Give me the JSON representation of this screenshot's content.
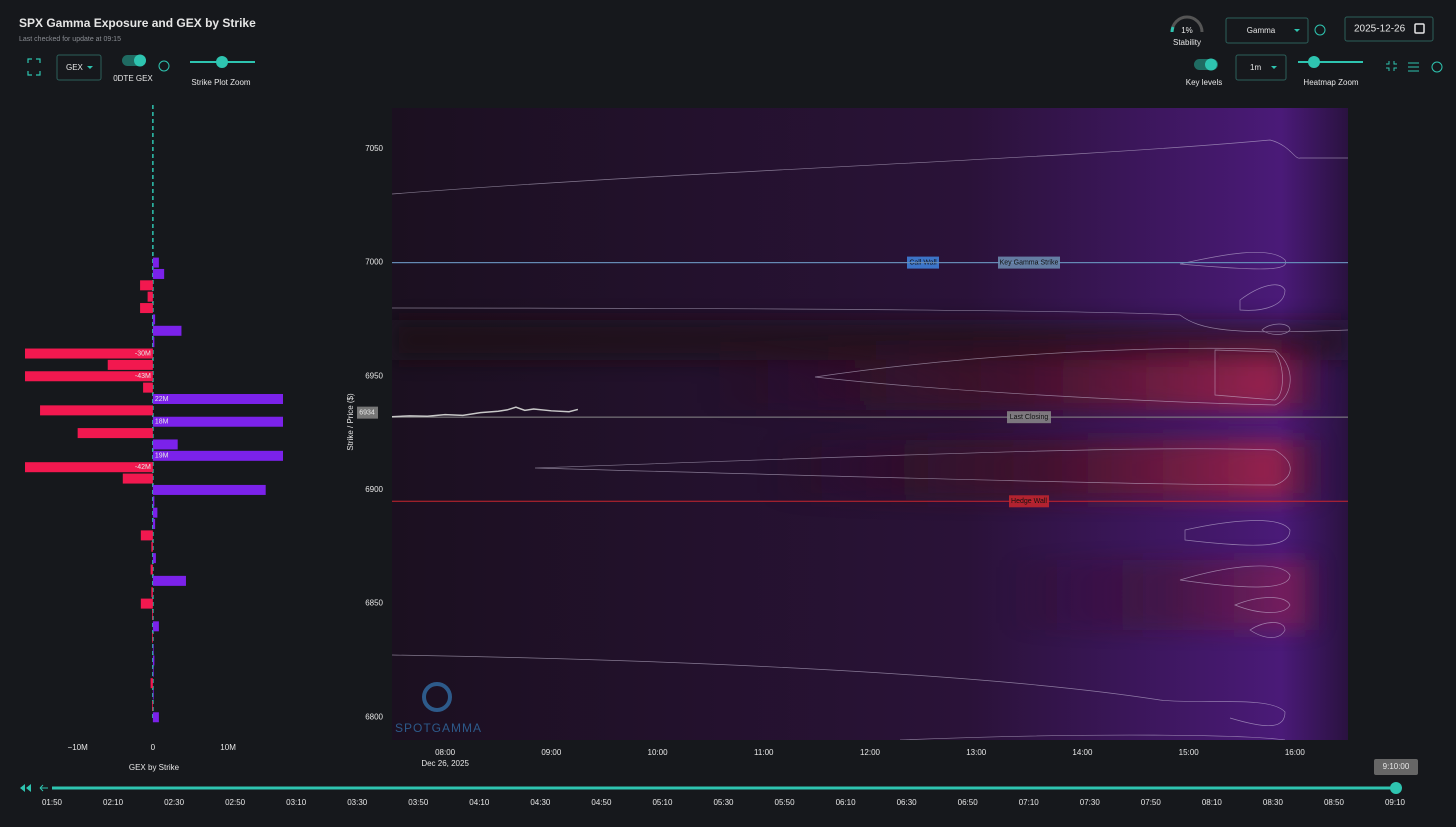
{
  "header": {
    "title": "SPX Gamma Exposure and GEX by Strike",
    "subtitle": "Last checked for update at 09:15"
  },
  "controls": {
    "gex_select": "GEX",
    "odte_label": "0DTE GEX",
    "strike_zoom_label": "Strike Plot Zoom",
    "stability_value": "1%",
    "stability_label": "Stability",
    "mode_select": "Gamma",
    "date": "2025-12-26",
    "key_levels_label": "Key levels",
    "interval_select": "1m",
    "heatmap_zoom_label": "Heatmap Zoom"
  },
  "gex_chart": {
    "type": "bar",
    "xlabel": "GEX by Strike",
    "positive_color": "#7b22ea",
    "negative_color": "#f2184f",
    "xlim": [
      -17000000,
      17300000
    ],
    "xticks": [
      {
        "value": -10000000,
        "label": "−10M"
      },
      0,
      {
        "value": 10000000,
        "label": "10M"
      }
    ],
    "ylim": [
      6790,
      7068
    ],
    "strikes": [
      7000,
      6995,
      6990,
      6985,
      6980,
      6975,
      6970,
      6965,
      6960,
      6955,
      6950,
      6945,
      6940,
      6935,
      6930,
      6925,
      6920,
      6915,
      6910,
      6905,
      6900,
      6895,
      6890,
      6885,
      6880,
      6875,
      6870,
      6865,
      6860,
      6855,
      6850,
      6845,
      6840,
      6835,
      6830,
      6825,
      6820,
      6815,
      6810,
      6805,
      6800
    ],
    "values": [
      800000,
      1500000,
      -1700000,
      -700000,
      -1700000,
      300000,
      3800000,
      200000,
      -30000000,
      -6000000,
      -43000000,
      -1300000,
      22000000,
      -15000000,
      18000000,
      -10000000,
      3300000,
      19000000,
      -42000000,
      -4000000,
      15000000,
      200000,
      600000,
      300000,
      -1600000,
      -200000,
      400000,
      -300000,
      4400000,
      -200000,
      -1600000,
      -100000,
      800000,
      -100000,
      100000,
      200000,
      100000,
      -300000,
      100000,
      -100000,
      800000
    ],
    "value_labels": [
      null,
      null,
      null,
      null,
      null,
      null,
      null,
      null,
      "-30M",
      null,
      "-43M",
      null,
      "22M",
      null,
      "18M",
      null,
      null,
      "19M",
      "-42M",
      null,
      null,
      null,
      null,
      null,
      null,
      null,
      null,
      null,
      null,
      null,
      null,
      null,
      null,
      null,
      null,
      null,
      null,
      null,
      null,
      null,
      null
    ]
  },
  "heatmap": {
    "type": "heatmap",
    "ylabel": "Strike / Price ($)",
    "ylim": [
      6790,
      7068
    ],
    "yticks": [
      6800,
      6850,
      6900,
      6950,
      7000,
      7050
    ],
    "xlim": [
      450,
      990
    ],
    "xticks": [
      {
        "value": 480,
        "label": "08:00"
      },
      {
        "value": 540,
        "label": "09:00"
      },
      {
        "value": 600,
        "label": "10:00"
      },
      {
        "value": 660,
        "label": "11:00"
      },
      {
        "value": 720,
        "label": "12:00"
      },
      {
        "value": 780,
        "label": "13:00"
      },
      {
        "value": 840,
        "label": "14:00"
      },
      {
        "value": 900,
        "label": "15:00"
      },
      {
        "value": 960,
        "label": "16:00"
      }
    ],
    "date_label": "Dec 26, 2025",
    "key_levels": [
      {
        "name": "Call Wall",
        "value": 7000,
        "color": "#3f86e0"
      },
      {
        "name": "Key Gamma Strike",
        "value": 7000,
        "color": "#6d8fb3"
      },
      {
        "name": "Last Closing",
        "value": 6932,
        "color": "#8a8a8a"
      },
      {
        "name": "Hedge Wall",
        "value": 6895,
        "color": "#c8262e"
      }
    ],
    "price": {
      "name": "SPX",
      "color": "#c8c8c8",
      "x": [
        450,
        460,
        470,
        480,
        490,
        500,
        510,
        515,
        520,
        525,
        530,
        540,
        550,
        555
      ],
      "values": [
        6932.2,
        6932.6,
        6932.4,
        6933.1,
        6932.8,
        6934,
        6934.6,
        6935.2,
        6936.4,
        6935,
        6935.6,
        6934.8,
        6934.4,
        6935.4
      ]
    },
    "price_label": 6934,
    "watermark": "SPOTGAMMA"
  },
  "timeline": {
    "ticks": [
      "01:50",
      "02:10",
      "02:30",
      "02:50",
      "03:10",
      "03:30",
      "03:50",
      "04:10",
      "04:30",
      "04:50",
      "05:10",
      "05:30",
      "05:50",
      "06:10",
      "06:30",
      "06:50",
      "07:10",
      "07:30",
      "07:50",
      "08:10",
      "08:30",
      "08:50",
      "09:10"
    ],
    "current": "9:10:00"
  }
}
